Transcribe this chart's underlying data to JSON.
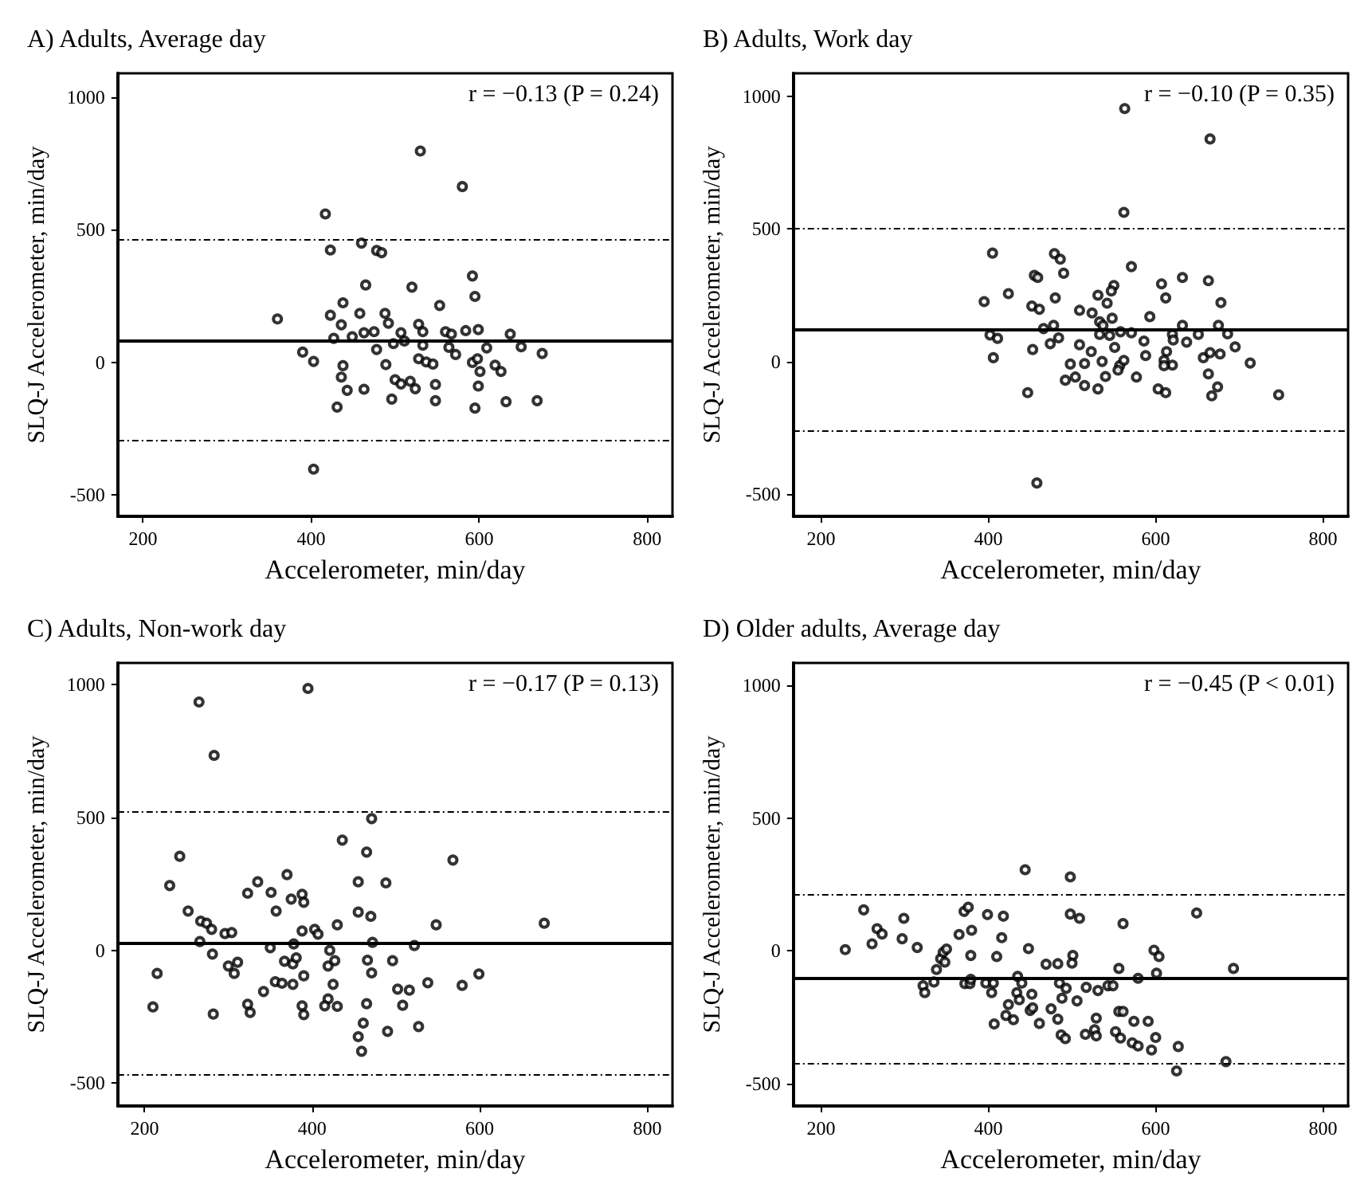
{
  "chart_data": [
    {
      "type": "scatter",
      "title": "A) Adults, Average day",
      "xlabel": "Accelerometer, min/day",
      "ylabel": "SLQ-J Accelerometer, min/day",
      "annotations": [
        "r = −0.13 (P = 0.24)"
      ],
      "color": "#000000",
      "marker": "circle",
      "xlim": [
        170,
        830
      ],
      "ylim": [
        -580,
        1090
      ],
      "xticks": [
        200,
        400,
        600,
        800
      ],
      "yticks": [
        -500,
        0,
        500,
        1000
      ],
      "ref_lines": [
        {
          "axis": "y",
          "value": 85,
          "line_style": "solid"
        },
        {
          "axis": "y",
          "value": 462,
          "line_style": "dotted"
        },
        {
          "axis": "y",
          "value": -292,
          "line_style": "dotted"
        }
      ],
      "x": [
        530,
        580,
        417,
        423,
        460,
        478,
        484,
        592,
        465,
        520,
        595,
        438,
        553,
        360,
        423,
        458,
        488,
        436,
        492,
        528,
        427,
        449,
        463,
        475,
        507,
        533,
        560,
        567,
        584,
        599,
        637,
        390,
        403,
        478,
        498,
        511,
        533,
        564,
        572,
        609,
        650,
        675,
        528,
        537,
        545,
        592,
        598,
        601,
        619,
        626,
        438,
        436,
        443,
        463,
        489,
        500,
        507,
        518,
        524,
        548,
        599,
        431,
        496,
        548,
        595,
        632,
        669,
        403
      ],
      "values": [
        797,
        663,
        560,
        424,
        450,
        422,
        414,
        326,
        292,
        284,
        249,
        225,
        215,
        164,
        178,
        185,
        185,
        142,
        148,
        144,
        91,
        97,
        112,
        116,
        112,
        116,
        116,
        107,
        120,
        124,
        107,
        39,
        4,
        49,
        71,
        81,
        65,
        57,
        30,
        55,
        59,
        34,
        14,
        2,
        -6,
        0,
        14,
        -34,
        -10,
        -34,
        -12,
        -55,
        -105,
        -101,
        -8,
        -65,
        -81,
        -71,
        -99,
        -83,
        -89,
        -168,
        -138,
        -144,
        -172,
        -148,
        -144,
        -402
      ]
    },
    {
      "type": "scatter",
      "title": "B) Adults, Work day",
      "xlabel": "Accelerometer, min/day",
      "ylabel": "SLQ-J Accelerometer, min/day",
      "annotations": [
        "r = −0.10 (P = 0.35)"
      ],
      "color": "#000000",
      "marker": "circle",
      "xlim": [
        167,
        830
      ],
      "ylim": [
        -585,
        1088
      ],
      "xticks": [
        200,
        400,
        600,
        800
      ],
      "yticks": [
        -500,
        0,
        500,
        1000
      ],
      "ref_lines": [
        {
          "axis": "y",
          "value": 118,
          "line_style": "solid"
        },
        {
          "axis": "y",
          "value": 504,
          "line_style": "dotted"
        },
        {
          "axis": "y",
          "value": -264,
          "line_style": "dotted"
        }
      ],
      "x": [
        563,
        665,
        562,
        405,
        479,
        486,
        490,
        571,
        632,
        663,
        455,
        459,
        607,
        550,
        547,
        531,
        542,
        612,
        395,
        424,
        452,
        461,
        480,
        678,
        509,
        524,
        548,
        593,
        533,
        537,
        466,
        478,
        632,
        675,
        558,
        571,
        402,
        411,
        474,
        484,
        533,
        545,
        620,
        621,
        637,
        651,
        686,
        406,
        453,
        509,
        523,
        551,
        586,
        588,
        613,
        657,
        665,
        677,
        695,
        536,
        498,
        515,
        557,
        562,
        610,
        620,
        610,
        713,
        540,
        555,
        577,
        504,
        492,
        515,
        531,
        603,
        612,
        663,
        674,
        667,
        447,
        747,
        458
      ],
      "values": [
        955,
        840,
        563,
        409,
        407,
        386,
        333,
        358,
        317,
        305,
        325,
        317,
        293,
        287,
        266,
        250,
        220,
        240,
        226,
        256,
        209,
        197,
        240,
        222,
        193,
        183,
        163,
        169,
        150,
        136,
        124,
        136,
        136,
        136,
        112,
        108,
        100,
        87,
        67,
        89,
        102,
        98,
        102,
        81,
        73,
        102,
        104,
        14,
        45,
        63,
        37,
        53,
        77,
        22,
        37,
        14,
        33,
        28,
        55,
        0,
        -10,
        -8,
        -16,
        4,
        4,
        -14,
        -16,
        -6,
        -57,
        -33,
        -59,
        -59,
        -71,
        -91,
        -104,
        -104,
        -118,
        -47,
        -96,
        -130,
        -118,
        -126,
        -459
      ]
    },
    {
      "type": "scatter",
      "title": "C) Adults, Non-work day",
      "xlabel": "Accelerometer, min/day",
      "ylabel": "SLQ-J Accelerometer, min/day",
      "annotations": [
        "r = −0.17 (P = 0.13)"
      ],
      "color": "#000000",
      "marker": "circle",
      "xlim": [
        168,
        830
      ],
      "ylim": [
        -586,
        1082
      ],
      "xticks": [
        200,
        400,
        600,
        800
      ],
      "yticks": [
        -500,
        0,
        500,
        1000
      ],
      "ref_lines": [
        {
          "axis": "y",
          "value": 30,
          "line_style": "solid"
        },
        {
          "axis": "y",
          "value": 525,
          "line_style": "dotted"
        },
        {
          "axis": "y",
          "value": -468,
          "line_style": "dotted"
        }
      ],
      "x": [
        265,
        395,
        283,
        242,
        230,
        252,
        267,
        274,
        280,
        296,
        304,
        266,
        281,
        215,
        210,
        282,
        300,
        307,
        311,
        323,
        335,
        351,
        357,
        370,
        375,
        388,
        390,
        388,
        403,
        407,
        378,
        350,
        367,
        377,
        381,
        390,
        356,
        364,
        377,
        342,
        323,
        326,
        388,
        390,
        421,
        419,
        427,
        425,
        419,
        415,
        430,
        430,
        436,
        455,
        465,
        455,
        470,
        471,
        472,
        466,
        471,
        465,
        461,
        455,
        459,
        488,
        490,
        496,
        502,
        508,
        516,
        522,
        527,
        538,
        548,
        568,
        579,
        599,
        677
      ],
      "values": [
        935,
        986,
        734,
        354,
        244,
        148,
        110,
        102,
        79,
        63,
        67,
        33,
        -14,
        -87,
        -213,
        -240,
        -59,
        -87,
        -45,
        215,
        258,
        218,
        148,
        285,
        193,
        211,
        181,
        73,
        79,
        61,
        24,
        10,
        -41,
        -51,
        -28,
        -96,
        -118,
        -124,
        -128,
        -155,
        -203,
        -234,
        -209,
        -242,
        0,
        -59,
        -39,
        -128,
        -183,
        -209,
        -211,
        96,
        415,
        258,
        370,
        144,
        128,
        496,
        30,
        -37,
        -85,
        -201,
        -274,
        -325,
        -380,
        254,
        -305,
        -39,
        -146,
        -207,
        -150,
        18,
        -287,
        -122,
        96,
        340,
        -132,
        -89,
        102
      ]
    },
    {
      "type": "scatter",
      "title": "D) Older adults, Average day",
      "xlabel": "Accelerometer, min/day",
      "ylabel": "SLQ-J Accelerometer, min/day",
      "annotations": [
        "r = −0.45 (P < 0.01)"
      ],
      "color": "#000000",
      "marker": "circle",
      "xlim": [
        167,
        830
      ],
      "ylim": [
        -585,
        1084
      ],
      "xticks": [
        200,
        400,
        600,
        800
      ],
      "yticks": [
        -500,
        0,
        500,
        1000
      ],
      "ref_lines": [
        {
          "axis": "y",
          "value": -104,
          "line_style": "solid"
        },
        {
          "axis": "y",
          "value": 211,
          "line_style": "dotted"
        },
        {
          "axis": "y",
          "value": -422,
          "line_style": "dotted"
        }
      ],
      "x": [
        229,
        251,
        261,
        267,
        273,
        299,
        297,
        315,
        322,
        324,
        335,
        338,
        343,
        346,
        350,
        348,
        371,
        376,
        372,
        378,
        380,
        379,
        379,
        365,
        399,
        418,
        416,
        410,
        397,
        406,
        404,
        407,
        424,
        421,
        430,
        435,
        440,
        434,
        437,
        444,
        448,
        452,
        450,
        453,
        461,
        469,
        475,
        483,
        483,
        485,
        488,
        487,
        492,
        493,
        498,
        498,
        501,
        500,
        506,
        509,
        517,
        516,
        527,
        529,
        529,
        531,
        543,
        549,
        552,
        556,
        558,
        556,
        561,
        561,
        572,
        574,
        579,
        579,
        591,
        595,
        598,
        600,
        601,
        604,
        627,
        625,
        649,
        684,
        693
      ],
      "values": [
        4,
        154,
        26,
        83,
        63,
        122,
        45,
        12,
        -132,
        -158,
        -118,
        -71,
        -30,
        -6,
        6,
        -43,
        148,
        164,
        -124,
        -124,
        77,
        -18,
        -108,
        61,
        136,
        130,
        49,
        -22,
        -122,
        -122,
        -158,
        -276,
        -203,
        -244,
        -260,
        -97,
        -122,
        -158,
        -185,
        305,
        8,
        -164,
        -225,
        -215,
        -274,
        -51,
        -219,
        -49,
        -258,
        -122,
        -179,
        -317,
        -331,
        -142,
        278,
        138,
        -18,
        -47,
        -189,
        122,
        -138,
        -315,
        -298,
        -321,
        -254,
        -150,
        -132,
        -132,
        -305,
        -67,
        -329,
        -229,
        -229,
        102,
        -347,
        -266,
        -359,
        -104,
        -266,
        -374,
        2,
        -327,
        -85,
        -22,
        -361,
        -453,
        142,
        -418,
        -67
      ]
    }
  ]
}
